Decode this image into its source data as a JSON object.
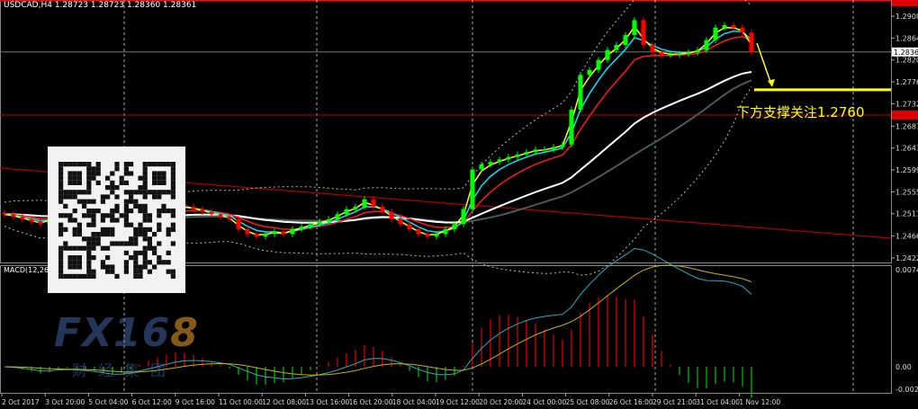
{
  "header": {
    "symbol_line": "USDCAD,H4  1.28723 1.28723 1.28360 1.28361"
  },
  "annotation": {
    "text": "下方支撑关注1.2760"
  },
  "macd_label": "MACD(12,26,9)",
  "watermark": {
    "brand": "FX168",
    "subtitle": "财经集团"
  },
  "colors": {
    "background": "#000000",
    "bull_candle": "#00ff00",
    "bear_candle": "#ff0000",
    "ma_fast": "#ffff00",
    "ma_mid": "#00e5ff",
    "ma_slow": "#ff1a1a",
    "ma_long": "#ffffff",
    "ma_long2": "#4a5a5a",
    "bollinger": "#bbbbbb",
    "support_line": "#ffff00",
    "trendline": "#b00000"
  },
  "chart_data": {
    "type": "candlestick",
    "symbol": "USDCAD",
    "timeframe": "H4",
    "current_price": 1.28361,
    "support_level": 1.276,
    "ylim": [
      1.2422,
      1.2935
    ],
    "y_ticks": [
      "1.29080",
      "1.28640",
      "1.28200",
      "1.27760",
      "1.27320",
      "1.26870",
      "1.26430",
      "1.25990",
      "1.25550",
      "1.25110",
      "1.24660",
      "1.24220"
    ],
    "x_ticks": [
      "2 Oct 2017",
      "3 Oct 20:00",
      "5 Oct 04:00",
      "6 Oct 12:00",
      "9 Oct 16:00",
      "11 Oct 00:00",
      "12 Oct 08:00",
      "13 Oct 16:00",
      "16 Oct 20:00",
      "18 Oct 04:00",
      "19 Oct 12:00",
      "20 Oct 20:00",
      "24 Oct 00:00",
      "25 Oct 08:00",
      "26 Oct 16:00",
      "29 Oct 21:00",
      "31 Oct 04:00",
      "1 Nov 12:00"
    ],
    "closes": [
      1.251,
      1.2505,
      1.25,
      1.2495,
      1.249,
      1.25,
      1.251,
      1.2505,
      1.25,
      1.2495,
      1.249,
      1.2485,
      1.248,
      1.249,
      1.25,
      1.251,
      1.2515,
      1.252,
      1.2525,
      1.253,
      1.2525,
      1.252,
      1.2515,
      1.251,
      1.2505,
      1.25,
      1.248,
      1.247,
      1.2465,
      1.247,
      1.2475,
      1.247,
      1.248,
      1.2485,
      1.249,
      1.2495,
      1.25,
      1.251,
      1.252,
      1.2525,
      1.254,
      1.2525,
      1.2515,
      1.25,
      1.249,
      1.248,
      1.247,
      1.2465,
      1.247,
      1.248,
      1.249,
      1.252,
      1.26,
      1.261,
      1.2615,
      1.262,
      1.2625,
      1.263,
      1.2635,
      1.264,
      1.264,
      1.2645,
      1.265,
      1.272,
      1.279,
      1.28,
      1.282,
      1.284,
      1.285,
      1.287,
      1.29,
      1.285,
      1.2835,
      1.283,
      1.283,
      1.2832,
      1.2835,
      1.284,
      1.286,
      1.2885,
      1.289,
      1.2885,
      1.2875,
      1.2836
    ],
    "macd": {
      "fast": 12,
      "slow": 26,
      "signal": 9,
      "y_ticks": [
        "0.00747",
        "0.00",
        "-0.00205"
      ],
      "ylim": [
        -0.00205,
        0.00747
      ]
    }
  }
}
